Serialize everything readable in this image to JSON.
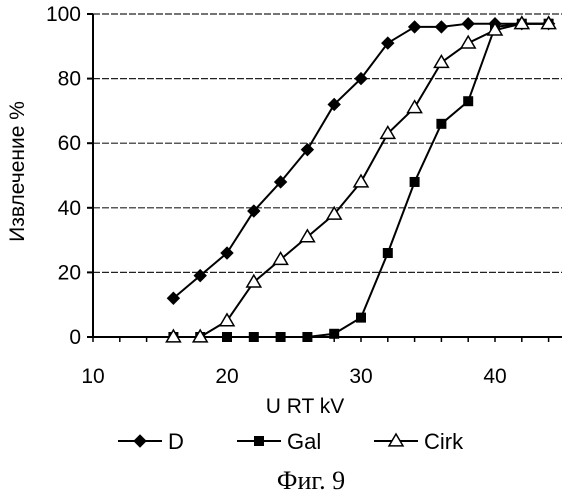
{
  "chart_data": {
    "type": "line",
    "xlabel": "U RT kV",
    "ylabel": "Извлечение %",
    "xlim": [
      10,
      45
    ],
    "ylim": [
      0,
      100
    ],
    "xticks": [
      10,
      20,
      30,
      40
    ],
    "yticks": [
      0,
      20,
      40,
      60,
      80,
      100
    ],
    "grid": "horizontal",
    "legend_position": "bottom",
    "caption": "Фиг. 9",
    "series": [
      {
        "name": "D",
        "marker": "diamond-filled",
        "color": "#000000",
        "x": [
          16,
          18,
          20,
          22,
          24,
          26,
          28,
          30,
          32,
          34,
          36,
          38,
          40,
          42,
          44
        ],
        "y": [
          12,
          19,
          26,
          39,
          48,
          58,
          72,
          80,
          91,
          96,
          96,
          97,
          97,
          97,
          97
        ]
      },
      {
        "name": "Gal",
        "marker": "square-filled",
        "color": "#000000",
        "x": [
          16,
          18,
          20,
          22,
          24,
          26,
          28,
          30,
          32,
          34,
          36,
          38,
          40,
          42,
          44
        ],
        "y": [
          0,
          0,
          0,
          0,
          0,
          0,
          1,
          6,
          26,
          48,
          66,
          73,
          96,
          97,
          97
        ]
      },
      {
        "name": "Cirk",
        "marker": "triangle-open",
        "color": "#000000",
        "x": [
          16,
          18,
          20,
          22,
          24,
          26,
          28,
          30,
          32,
          34,
          36,
          38,
          40,
          42,
          44
        ],
        "y": [
          0,
          0,
          5,
          17,
          24,
          31,
          38,
          48,
          63,
          71,
          85,
          91,
          95,
          97,
          97
        ]
      }
    ]
  }
}
